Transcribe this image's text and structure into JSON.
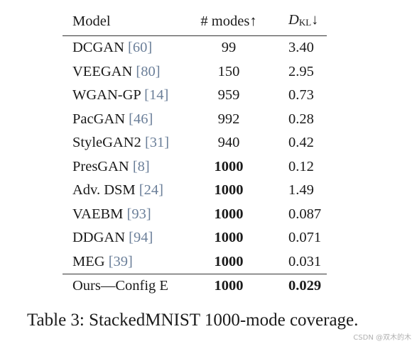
{
  "table": {
    "headers": {
      "model": "Model",
      "modes": "# modes↑",
      "kl_symbol": "D",
      "kl_subscript": "KL",
      "kl_arrow": "↓"
    },
    "rows": [
      {
        "name": "DCGAN ",
        "cite": "[60]",
        "modes": "99",
        "kl": "3.40",
        "modes_bold": false,
        "kl_bold": false
      },
      {
        "name": "VEEGAN ",
        "cite": "[80]",
        "modes": "150",
        "kl": "2.95",
        "modes_bold": false,
        "kl_bold": false
      },
      {
        "name": "WGAN-GP ",
        "cite": "[14]",
        "modes": "959",
        "kl": "0.73",
        "modes_bold": false,
        "kl_bold": false
      },
      {
        "name": "PacGAN ",
        "cite": "[46]",
        "modes": "992",
        "kl": "0.28",
        "modes_bold": false,
        "kl_bold": false
      },
      {
        "name": "StyleGAN2 ",
        "cite": "[31]",
        "modes": "940",
        "kl": "0.42",
        "modes_bold": false,
        "kl_bold": false
      },
      {
        "name": "PresGAN ",
        "cite": "[8]",
        "modes": "1000",
        "kl": "0.12",
        "modes_bold": true,
        "kl_bold": false
      },
      {
        "name": "Adv. DSM ",
        "cite": "[24]",
        "modes": "1000",
        "kl": "1.49",
        "modes_bold": true,
        "kl_bold": false
      },
      {
        "name": "VAEBM ",
        "cite": "[93]",
        "modes": "1000",
        "kl": "0.087",
        "modes_bold": true,
        "kl_bold": false
      },
      {
        "name": "DDGAN ",
        "cite": "[94]",
        "modes": "1000",
        "kl": "0.071",
        "modes_bold": true,
        "kl_bold": false
      },
      {
        "name": "MEG ",
        "cite": "[39]",
        "modes": "1000",
        "kl": "0.031",
        "modes_bold": true,
        "kl_bold": false
      },
      {
        "name": "Ours—Config E",
        "cite": "",
        "modes": "1000",
        "kl": "0.029",
        "modes_bold": true,
        "kl_bold": true
      }
    ]
  },
  "caption": "Table 3: StackedMNIST 1000-mode coverage.",
  "watermark": "CSDN @双木的木"
}
